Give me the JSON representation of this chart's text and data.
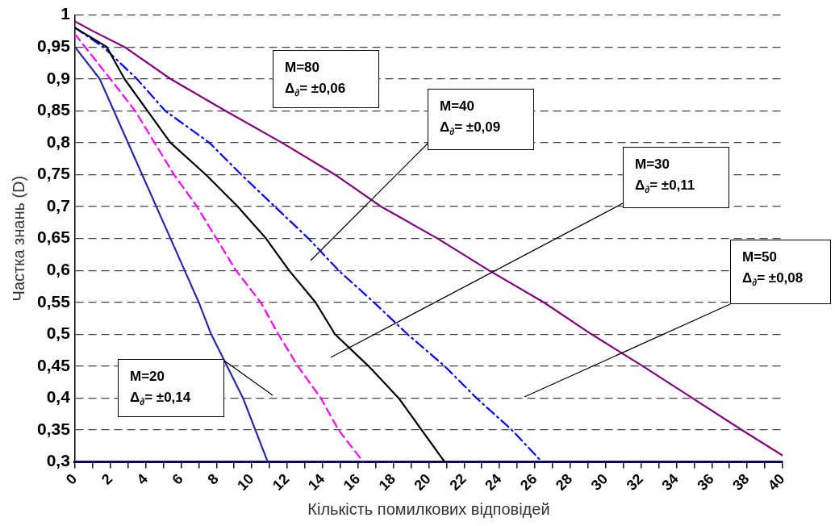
{
  "chart_data": {
    "type": "line",
    "xlabel": "Кількість помилкових відповідей",
    "ylabel": "Частка знань (D)",
    "xlim": [
      0,
      40
    ],
    "ylim": [
      0.3,
      1
    ],
    "xticks": [
      {
        "value": 0,
        "label": "0"
      },
      {
        "value": 1,
        "label": null
      },
      {
        "value": 2,
        "label": "2"
      },
      {
        "value": 3,
        "label": null
      },
      {
        "value": 4,
        "label": "4"
      },
      {
        "value": 5,
        "label": null
      },
      {
        "value": 6,
        "label": "6"
      },
      {
        "value": 7,
        "label": null
      },
      {
        "value": 8,
        "label": "8"
      },
      {
        "value": 9,
        "label": null
      },
      {
        "value": 10,
        "label": "10"
      },
      {
        "value": 11,
        "label": null
      },
      {
        "value": 12,
        "label": "12"
      },
      {
        "value": 13,
        "label": null
      },
      {
        "value": 14,
        "label": "14"
      },
      {
        "value": 15,
        "label": null
      },
      {
        "value": 16,
        "label": "16"
      },
      {
        "value": 17,
        "label": null
      },
      {
        "value": 18,
        "label": "18"
      },
      {
        "value": 19,
        "label": null
      },
      {
        "value": 20,
        "label": "20"
      },
      {
        "value": 21,
        "label": null
      },
      {
        "value": 22,
        "label": "22"
      },
      {
        "value": 23,
        "label": null
      },
      {
        "value": 24,
        "label": "24"
      },
      {
        "value": 25,
        "label": null
      },
      {
        "value": 26,
        "label": "26"
      },
      {
        "value": 27,
        "label": null
      },
      {
        "value": 28,
        "label": "28"
      },
      {
        "value": 29,
        "label": null
      },
      {
        "value": 30,
        "label": "30"
      },
      {
        "value": 31,
        "label": null
      },
      {
        "value": 32,
        "label": "32"
      },
      {
        "value": 33,
        "label": null
      },
      {
        "value": 34,
        "label": "34"
      },
      {
        "value": 35,
        "label": null
      },
      {
        "value": 36,
        "label": "36"
      },
      {
        "value": 37,
        "label": null
      },
      {
        "value": 38,
        "label": "38"
      },
      {
        "value": 39,
        "label": null
      },
      {
        "value": 40,
        "label": "40"
      }
    ],
    "yticks": [
      {
        "value": 0.3,
        "label": "0,3"
      },
      {
        "value": 0.35,
        "label": "0,35"
      },
      {
        "value": 0.4,
        "label": "0,4"
      },
      {
        "value": 0.45,
        "label": "0,45"
      },
      {
        "value": 0.5,
        "label": "0,5"
      },
      {
        "value": 0.55,
        "label": "0,55"
      },
      {
        "value": 0.6,
        "label": "0,6"
      },
      {
        "value": 0.65,
        "label": "0,65"
      },
      {
        "value": 0.7,
        "label": "0,7"
      },
      {
        "value": 0.75,
        "label": "0,75"
      },
      {
        "value": 0.8,
        "label": "0,8"
      },
      {
        "value": 0.85,
        "label": "0,85"
      },
      {
        "value": 0.9,
        "label": "0,9"
      },
      {
        "value": 0.95,
        "label": "0,95"
      },
      {
        "value": 1,
        "label": "1"
      }
    ],
    "grid": "y",
    "legend": false,
    "marker": "none",
    "series": [
      {
        "color": "#2a2ab0",
        "line_style": "solid",
        "x": [
          0,
          1.4,
          3.8,
          6.2,
          7,
          7.7,
          8.6,
          9.5,
          10.2,
          10.9
        ],
        "values": [
          0.95,
          0.9,
          0.75,
          0.6,
          0.55,
          0.5,
          0.45,
          0.4,
          0.35,
          0.3
        ]
      },
      {
        "color": "#ff00ff",
        "line_style": "dashed",
        "x": [
          0,
          2,
          3.4,
          4.5,
          5.6,
          6.9,
          8,
          9.1,
          10.5,
          11.5,
          12.6,
          13.9,
          14.9,
          16.3
        ],
        "values": [
          0.97,
          0.9,
          0.85,
          0.8,
          0.75,
          0.7,
          0.65,
          0.6,
          0.55,
          0.5,
          0.45,
          0.4,
          0.35,
          0.3
        ]
      },
      {
        "color": "#000000",
        "line_style": "solid",
        "x": [
          0,
          1.8,
          2.8,
          4.1,
          5.4,
          7.4,
          9.2,
          10.8,
          12.1,
          13.6,
          14.7,
          16.6,
          18.3,
          19.6,
          20.9
        ],
        "values": [
          0.98,
          0.95,
          0.9,
          0.85,
          0.8,
          0.75,
          0.7,
          0.65,
          0.6,
          0.55,
          0.5,
          0.45,
          0.4,
          0.35,
          0.3
        ]
      },
      {
        "color": "#0000ff",
        "line_style": "dashdot",
        "x": [
          0,
          1.6,
          3.5,
          5.1,
          7.6,
          9.4,
          11.3,
          13.2,
          14.9,
          16.9,
          18.8,
          20.9,
          22.7,
          24.7,
          26.4
        ],
        "values": [
          0.98,
          0.95,
          0.9,
          0.85,
          0.8,
          0.75,
          0.7,
          0.65,
          0.6,
          0.55,
          0.5,
          0.45,
          0.4,
          0.35,
          0.3
        ]
      },
      {
        "color": "#800080",
        "line_style": "solid",
        "x": [
          0,
          1,
          2.8,
          5.4,
          8.5,
          11.7,
          14.7,
          17.3,
          20.5,
          23.4,
          26.5,
          29.2,
          32.1,
          34.9,
          37.7,
          40
        ],
        "values": [
          0.99,
          0.975,
          0.95,
          0.9,
          0.85,
          0.8,
          0.75,
          0.7,
          0.65,
          0.6,
          0.55,
          0.5,
          0.45,
          0.4,
          0.35,
          0.31
        ]
      }
    ],
    "annotations": [
      "M=80\nΔ$_{∂}$= ±0,06",
      "M=40\nΔ$_{∂}$= ±0,09",
      "M=30\nΔ$_{∂}$= ±0,11",
      "M=50\nΔ$_{∂}$= ±0,08",
      "M=20\nΔ$_{∂}$= ±0,14"
    ]
  }
}
